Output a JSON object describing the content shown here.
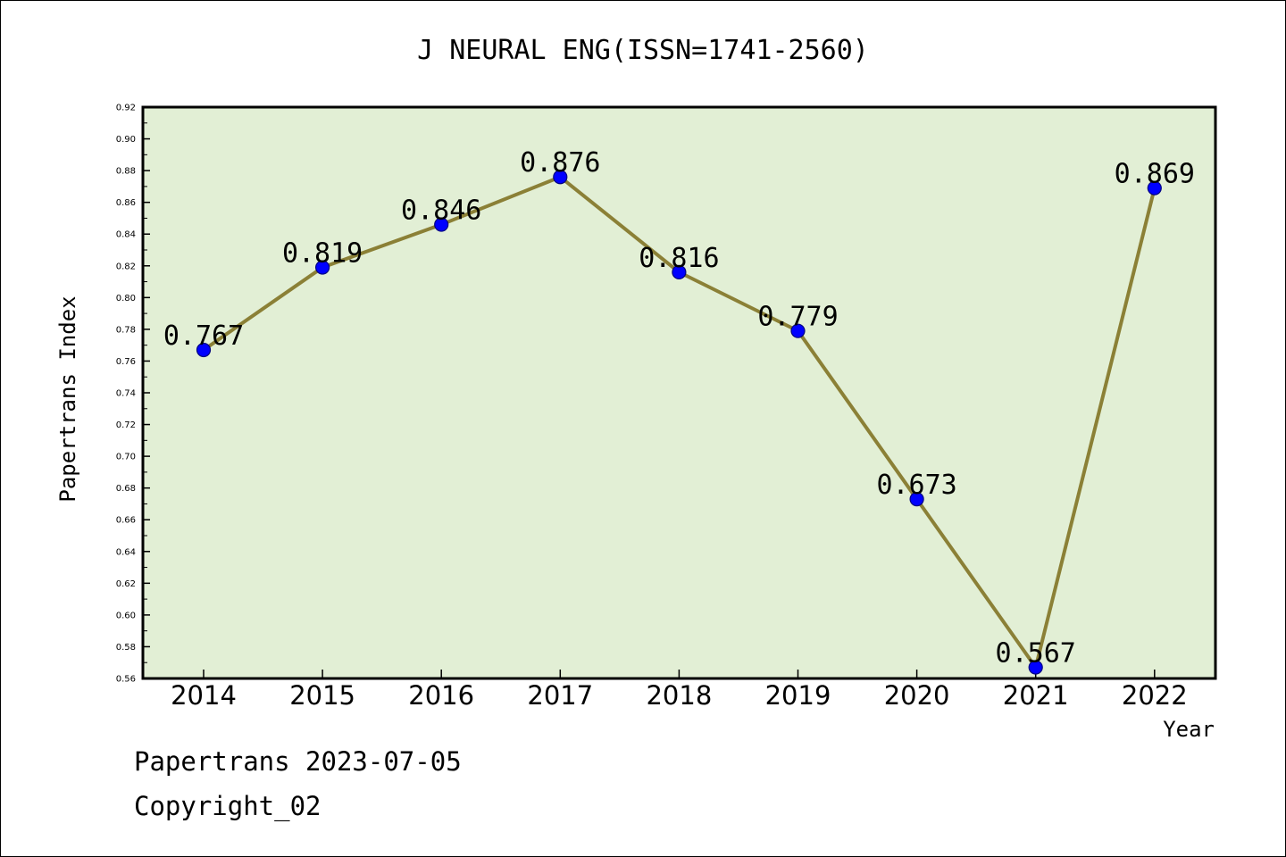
{
  "colors": {
    "plot_background": "#e2efd5",
    "line": "#8b8036",
    "marker": "#0000ff",
    "marker_edge": "#000080",
    "text": "#000000"
  },
  "chart_data": {
    "type": "line",
    "title": "J NEURAL ENG(ISSN=1741-2560)",
    "xlabel": "Year",
    "ylabel": "Papertrans Index",
    "categories": [
      "2014",
      "2015",
      "2016",
      "2017",
      "2018",
      "2019",
      "2020",
      "2021",
      "2022"
    ],
    "values": [
      0.767,
      0.819,
      0.846,
      0.876,
      0.816,
      0.779,
      0.673,
      0.567,
      0.869
    ],
    "data_labels": [
      "0.767",
      "0.819",
      "0.846",
      "0.876",
      "0.816",
      "0.779",
      "0.673",
      "0.567",
      "0.869"
    ],
    "ylim": [
      0.56,
      0.92
    ],
    "yticks": [
      "0.56",
      "0.58",
      "0.60",
      "0.62",
      "0.64",
      "0.66",
      "0.68",
      "0.70",
      "0.72",
      "0.74",
      "0.76",
      "0.78",
      "0.80",
      "0.82",
      "0.84",
      "0.86",
      "0.88",
      "0.90",
      "0.92"
    ],
    "grid": false,
    "legend": false
  },
  "footer": {
    "line1": "Papertrans 2023-07-05",
    "line2": "Copyright_02"
  }
}
